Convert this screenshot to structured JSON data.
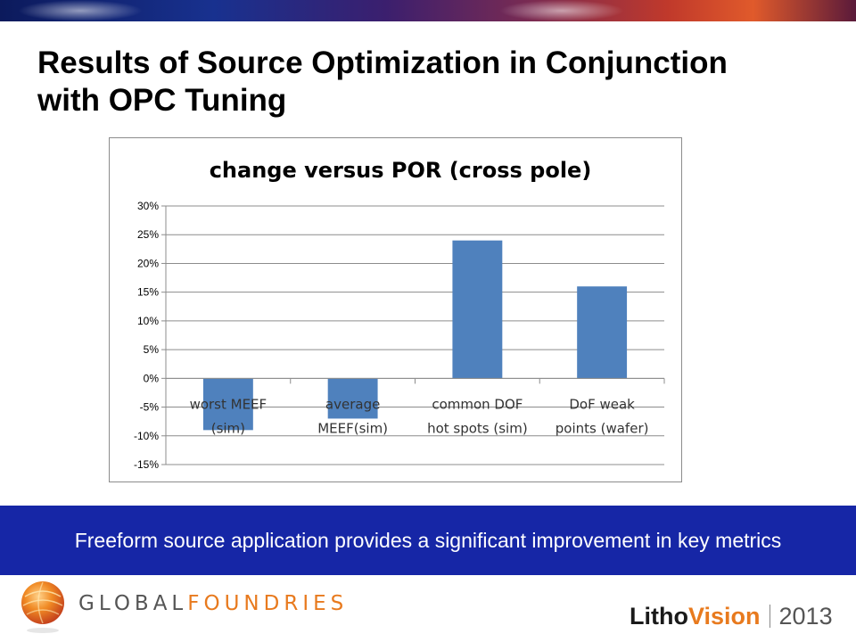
{
  "slide": {
    "title": "Results of Source Optimization in Conjunction\nwith OPC Tuning",
    "summary": "Freeform source application provides a significant improvement in key metrics"
  },
  "colors": {
    "bar": "#4f81bd",
    "summary_bg": "#1626a6",
    "accent_orange": "#e87a1e"
  },
  "footer": {
    "gf_wordmark_part1": "GLOBAL",
    "gf_wordmark_part2": "FOUNDRIES",
    "gf_logo_icon": "globe-logo-icon",
    "lithovision_litho": "Litho",
    "lithovision_vision": "Vision",
    "year": "2013"
  },
  "chart_data": {
    "type": "bar",
    "title": "change versus POR (cross pole)",
    "categories": [
      [
        "worst MEEF",
        "(sim)"
      ],
      [
        "average",
        "MEEF(sim)"
      ],
      [
        "common DOF",
        "hot spots (sim)"
      ],
      [
        "DoF weak",
        "points (wafer)"
      ]
    ],
    "values": [
      -9,
      -7,
      24,
      16
    ],
    "ylim": [
      -15,
      30
    ],
    "yticks": [
      30,
      25,
      20,
      15,
      10,
      5,
      0,
      -5,
      -10,
      -15
    ],
    "ytick_labels": [
      "30%",
      "25%",
      "20%",
      "15%",
      "10%",
      "5%",
      "0%",
      "-5%",
      "-10%",
      "-15%"
    ],
    "grid": true,
    "legend": "none",
    "xlabel": "",
    "ylabel": ""
  }
}
